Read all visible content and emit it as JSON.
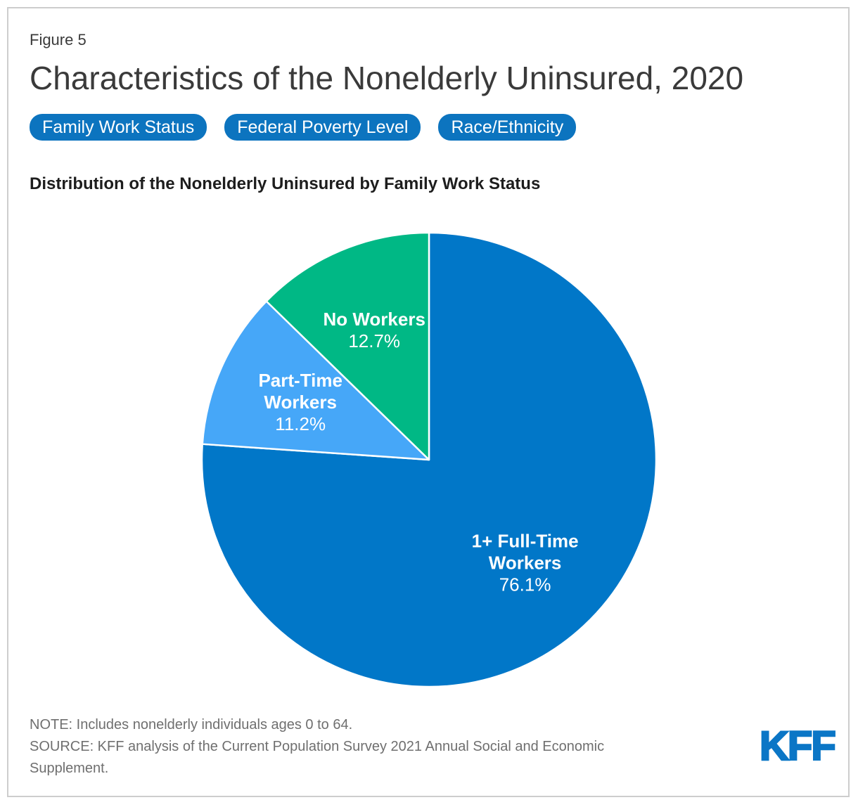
{
  "header": {
    "figure_label": "Figure 5",
    "title": "Characteristics of the Nonelderly Uninsured, 2020"
  },
  "tabs": [
    {
      "label": "Family Work Status",
      "active": true
    },
    {
      "label": "Federal Poverty Level",
      "active": false
    },
    {
      "label": "Race/Ethnicity",
      "active": false
    }
  ],
  "chart_data": {
    "type": "pie",
    "title": "Distribution of the Nonelderly Uninsured by Family Work Status",
    "start_angle_deg": 0,
    "direction": "clockwise",
    "legend_position": "none",
    "slices": [
      {
        "label": "1+ Full-Time Workers",
        "label_lines": [
          "1+ Full-Time",
          "Workers"
        ],
        "value": 76.1,
        "display": "76.1%",
        "color": "#0177c8"
      },
      {
        "label": "Part-Time Workers",
        "label_lines": [
          "Part-Time",
          "Workers"
        ],
        "value": 11.2,
        "display": "11.2%",
        "color": "#46a7f8"
      },
      {
        "label": "No Workers",
        "label_lines": [
          "No Workers"
        ],
        "value": 12.7,
        "display": "12.7%",
        "color": "#00b885"
      }
    ]
  },
  "footer": {
    "note": "NOTE: Includes nonelderly individuals ages 0 to 64.",
    "source": "SOURCE: KFF analysis of the Current Population Survey 2021 Annual Social and Economic Supplement.",
    "logo_text": "KFF"
  },
  "colors": {
    "pill_blue": "#0c74bf",
    "slice_blue": "#0177c8",
    "slice_light_blue": "#46a7f8",
    "slice_green": "#00b885",
    "logo_blue": "#0b76c6",
    "frame_gray": "#cdcdcd",
    "note_gray": "#6f6f6f"
  }
}
